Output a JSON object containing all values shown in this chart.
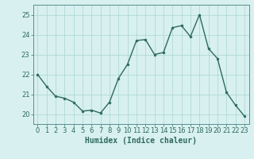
{
  "x": [
    0,
    1,
    2,
    3,
    4,
    5,
    6,
    7,
    8,
    9,
    10,
    11,
    12,
    13,
    14,
    15,
    16,
    17,
    18,
    19,
    20,
    21,
    22,
    23
  ],
  "y": [
    22.0,
    21.4,
    20.9,
    20.8,
    20.6,
    20.15,
    20.2,
    20.05,
    20.6,
    21.8,
    22.5,
    23.7,
    23.75,
    23.0,
    23.1,
    24.35,
    24.45,
    23.9,
    25.0,
    23.3,
    22.8,
    21.1,
    20.45,
    19.9
  ],
  "line_color": "#2e6b5e",
  "marker": "o",
  "marker_size": 2,
  "bg_color": "#d8f0f0",
  "grid_color": "#aad4d4",
  "xlabel": "Humidex (Indice chaleur)",
  "ylim": [
    19.5,
    25.5
  ],
  "xlim": [
    -0.5,
    23.5
  ],
  "yticks": [
    20,
    21,
    22,
    23,
    24,
    25
  ],
  "xticks": [
    0,
    1,
    2,
    3,
    4,
    5,
    6,
    7,
    8,
    9,
    10,
    11,
    12,
    13,
    14,
    15,
    16,
    17,
    18,
    19,
    20,
    21,
    22,
    23
  ],
  "xlabel_fontsize": 7,
  "tick_fontsize": 6,
  "line_width": 1.0,
  "spine_color": "#5a9090"
}
